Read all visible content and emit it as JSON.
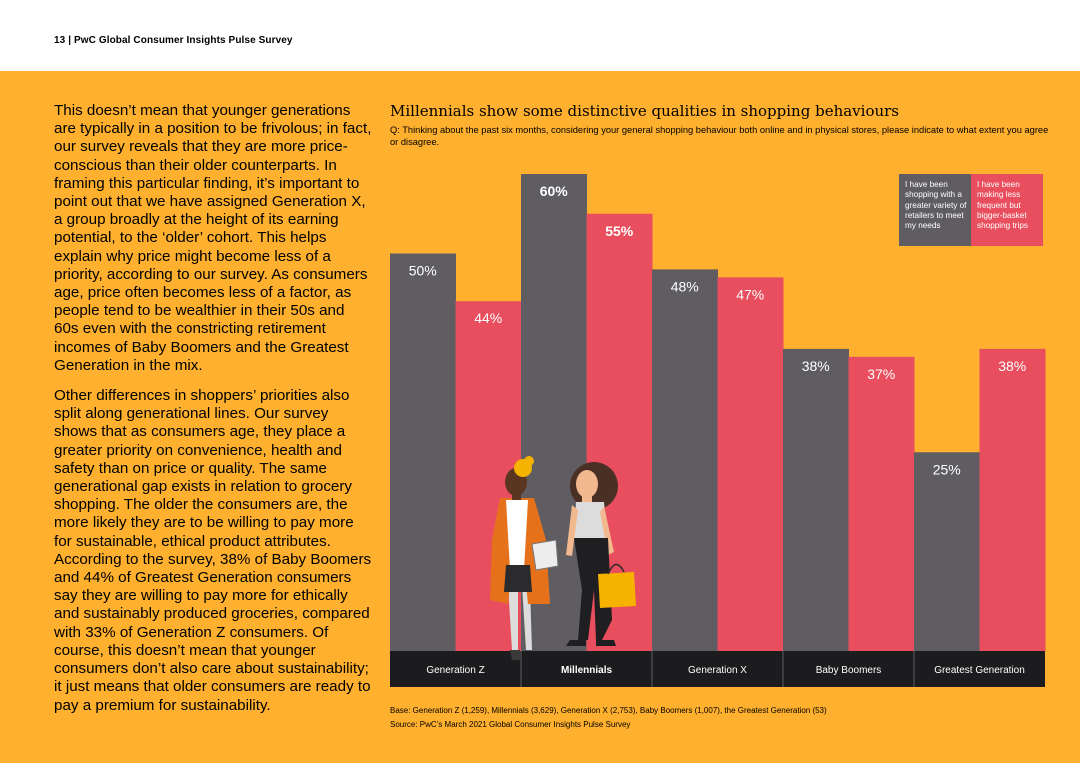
{
  "header": {
    "title": "13 | PwC Global Consumer Insights Pulse Survey"
  },
  "body_text": {
    "paragraph1": "This doesn’t mean that younger generations are typically in a position to be frivolous; in fact, our survey reveals that they are more price-conscious than their older counterparts. In framing this particular finding, it’s important to point out that we have assigned Generation X, a group broadly at the height of its earning potential, to the ‘older’ cohort. This helps explain why price might become less of a priority, according to our survey. As consumers age, price often becomes less of a factor, as people tend to be wealthier in their 50s and 60s even with the constricting retirement incomes of Baby Boomers and the Greatest Generation in the mix.",
    "paragraph2": "Other differences in shoppers’ priorities also split along generational lines. Our survey shows that as consumers age, they place a greater priority on convenience, health and safety than on price or quality. The same generational gap exists in relation to grocery shopping. The older the consumers are, the more likely they are to be willing to pay more for sustainable, ethical product attributes. According to the survey, 38% of Baby Boomers and 44% of Greatest Generation consumers say they are willing to pay more for ethically and sustainably produced groceries, compared with 33% of Generation Z consumers. Of course, this doesn’t mean that younger consumers don’t also care about sustainability; it just means that older consumers are ready to pay a premium for sustainability."
  },
  "chart_data": {
    "type": "bar",
    "title": "Millennials show some distinctive qualities in shopping behaviours",
    "subtitle": "Q: Thinking about the past six months, considering your general shopping behaviour both online and in physical stores, please indicate to what extent you agree or disagree.",
    "categories": [
      "Generation Z",
      "Millennials",
      "Generation X",
      "Baby Boomers",
      "Greatest Generation"
    ],
    "series": [
      {
        "name": "I have been shopping with a greater variety of retailers to meet my needs",
        "color": "#5F5D62",
        "values": [
          50,
          60,
          48,
          38,
          25
        ]
      },
      {
        "name": "I have been making less frequent but bigger-basket shopping trips",
        "color": "#E84E5D",
        "values": [
          44,
          55,
          47,
          37,
          38
        ]
      }
    ],
    "value_labels": [
      [
        "50%",
        "60%",
        "48%",
        "38%",
        "25%"
      ],
      [
        "44%",
        "55%",
        "47%",
        "37%",
        "38%"
      ]
    ],
    "highlight_category": "Millennials",
    "ylim": [
      0,
      60
    ],
    "legend_position": "top-right",
    "grid": false
  },
  "footnotes": {
    "base": "Base: Generation Z (1,259), Millennials (3,629), Generation X (2,753), Baby Boomers (1,007), the Greatest Generation (53)",
    "source": "Source: PwC’s March 2021 Global Consumer Insights Pulse Survey"
  },
  "colors": {
    "background": "#FFB02E",
    "bar_grey": "#5F5D62",
    "bar_red": "#E84E5D",
    "axis_band": "#1C1B1D"
  }
}
